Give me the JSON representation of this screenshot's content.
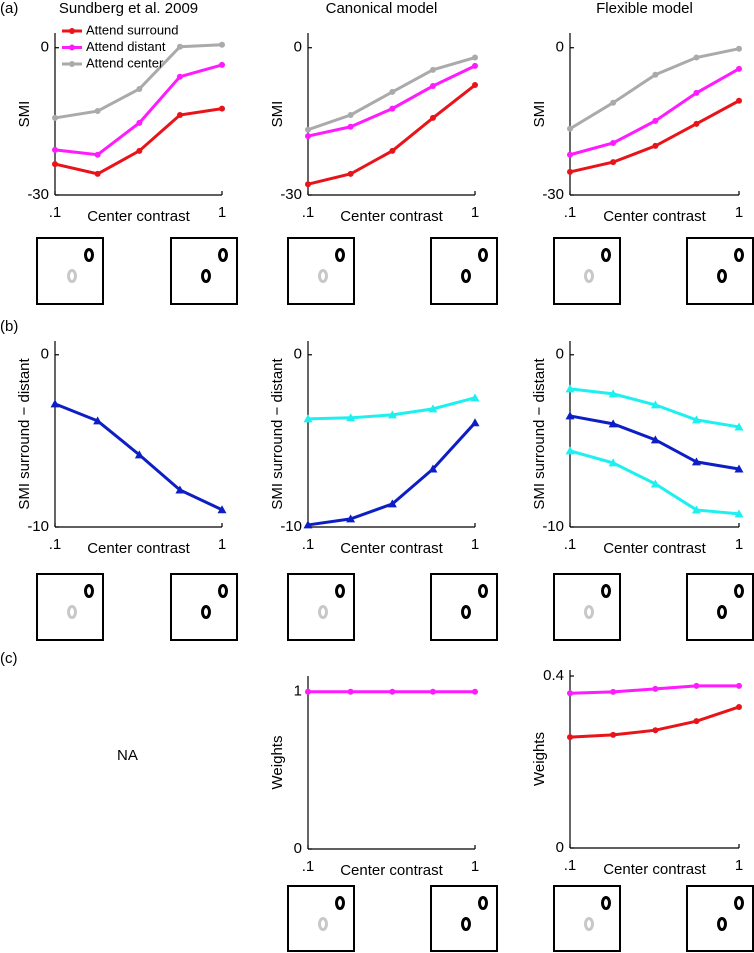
{
  "panel_labels": [
    "(a)",
    "(b)",
    "(c)"
  ],
  "na_label": "NA",
  "chart_data": [
    {
      "type": "line",
      "title": "Sundberg et al. 2009",
      "xlabel": "Center contrast",
      "ylabel": "SMI",
      "log_x": true,
      "marker": "circle",
      "legend": "upper left",
      "x": [
        0.1,
        0.18,
        0.32,
        0.56,
        1
      ],
      "xlim": [
        0.1,
        1
      ],
      "xticks": [
        {
          "value": 0.1,
          "label": ".1"
        },
        1
      ],
      "ylim": [
        -30,
        3
      ],
      "yticks": [
        -30,
        0
      ],
      "series": [
        {
          "name": "Attend surround",
          "color": "#e8141a",
          "values": [
            -23.7,
            -25.7,
            -21,
            -13.7,
            -12.4
          ]
        },
        {
          "name": "Attend distant",
          "color": "#ff1aff",
          "values": [
            -20.8,
            -21.8,
            -15.3,
            -5.9,
            -3.5
          ]
        },
        {
          "name": "Attend center",
          "color": "#aaaaaa",
          "values": [
            -14.3,
            -12.9,
            -8.4,
            0.2,
            0.6
          ]
        }
      ]
    },
    {
      "type": "line",
      "title": "Canonical model",
      "xlabel": "Center contrast",
      "ylabel": "SMI",
      "log_x": true,
      "marker": "circle",
      "x": [
        0.1,
        0.18,
        0.32,
        0.56,
        1
      ],
      "xlim": [
        0.1,
        1
      ],
      "xticks": [
        {
          "value": 0.1,
          "label": ".1"
        },
        1
      ],
      "ylim": [
        -30,
        3
      ],
      "yticks": [
        -30,
        0
      ],
      "series": [
        {
          "color": "#e8141a",
          "values": [
            -27.8,
            -25.7,
            -21,
            -14.3,
            -7.6
          ]
        },
        {
          "color": "#ff1aff",
          "values": [
            -18,
            -16.1,
            -12.4,
            -7.8,
            -3.7
          ]
        },
        {
          "color": "#aaaaaa",
          "values": [
            -16.7,
            -13.7,
            -9,
            -4.5,
            -2
          ]
        }
      ]
    },
    {
      "type": "line",
      "title": "Flexible model",
      "xlabel": "Center contrast",
      "ylabel": "SMI",
      "log_x": true,
      "marker": "circle",
      "x": [
        0.1,
        0.18,
        0.32,
        0.56,
        1
      ],
      "xlim": [
        0.1,
        1
      ],
      "xticks": [
        {
          "value": 0.1,
          "label": ".1"
        },
        1
      ],
      "ylim": [
        -30,
        3
      ],
      "yticks": [
        -30,
        0
      ],
      "series": [
        {
          "color": "#e8141a",
          "values": [
            -25.3,
            -23.3,
            -20,
            -15.5,
            -10.8
          ]
        },
        {
          "color": "#ff1aff",
          "values": [
            -21.8,
            -19.4,
            -14.9,
            -9.2,
            -4.3
          ]
        },
        {
          "color": "#aaaaaa",
          "values": [
            -16.5,
            -11.2,
            -5.5,
            -2,
            -0.2
          ]
        }
      ]
    },
    {
      "type": "line",
      "xlabel": "Center contrast",
      "ylabel": "SMI surround − distant",
      "log_x": true,
      "marker": "triangle",
      "x": [
        0.1,
        0.18,
        0.32,
        0.56,
        1
      ],
      "xlim": [
        0.1,
        1
      ],
      "xticks": [
        {
          "value": 0.1,
          "label": ".1"
        },
        1
      ],
      "ylim": [
        -10,
        0.8
      ],
      "yticks": [
        -10,
        0
      ],
      "series": [
        {
          "color": "#0d1fc4",
          "values": [
            -2.85,
            -3.84,
            -5.81,
            -7.85,
            -9.0
          ]
        }
      ]
    },
    {
      "type": "line",
      "xlabel": "Center contrast",
      "ylabel": "SMI surround − distant",
      "log_x": true,
      "marker": "triangle",
      "x": [
        0.1,
        0.18,
        0.32,
        0.56,
        1
      ],
      "xlim": [
        0.1,
        1
      ],
      "xticks": [
        {
          "value": 0.1,
          "label": ".1"
        },
        1
      ],
      "ylim": [
        -10,
        0.8
      ],
      "yticks": [
        -10,
        0
      ],
      "series": [
        {
          "color": "#1ef0f0",
          "values": [
            -3.72,
            -3.66,
            -3.49,
            -3.14,
            -2.5
          ]
        },
        {
          "color": "#0d1fc4",
          "values": [
            -9.88,
            -9.53,
            -8.66,
            -6.63,
            -3.95
          ]
        }
      ]
    },
    {
      "type": "line",
      "xlabel": "Center contrast",
      "ylabel": "SMI surround − distant",
      "log_x": true,
      "marker": "triangle",
      "x": [
        0.1,
        0.18,
        0.32,
        0.56,
        1
      ],
      "xlim": [
        0.1,
        1
      ],
      "xticks": [
        {
          "value": 0.1,
          "label": ".1"
        },
        1
      ],
      "ylim": [
        -10,
        0.8
      ],
      "yticks": [
        -10,
        0
      ],
      "series": [
        {
          "color": "#1ef0f0",
          "values": [
            -1.98,
            -2.27,
            -2.91,
            -3.78,
            -4.19
          ]
        },
        {
          "color": "#0d1fc4",
          "values": [
            -3.55,
            -4.01,
            -4.94,
            -6.22,
            -6.63
          ]
        },
        {
          "color": "#1ef0f0",
          "values": [
            -5.58,
            -6.28,
            -7.5,
            -9.01,
            -9.24
          ]
        }
      ]
    },
    {
      "type": "line",
      "xlabel": "Center contrast",
      "ylabel": "Weights",
      "log_x": true,
      "marker": "circle",
      "x": [
        0.1,
        0.18,
        0.32,
        0.56,
        1
      ],
      "xlim": [
        0.1,
        1
      ],
      "xticks": [
        {
          "value": 0.1,
          "label": ".1"
        },
        1
      ],
      "ylim": [
        0,
        1.1
      ],
      "yticks": [
        0,
        1
      ],
      "series": [
        {
          "color": "#ff1aff",
          "values": [
            1,
            1,
            1,
            1,
            1
          ]
        }
      ]
    },
    {
      "type": "line",
      "xlabel": "Center contrast",
      "ylabel": "Weights",
      "log_x": true,
      "marker": "circle",
      "x": [
        0.1,
        0.18,
        0.32,
        0.56,
        1
      ],
      "xlim": [
        0.1,
        1
      ],
      "xticks": [
        {
          "value": 0.1,
          "label": ".1"
        },
        1
      ],
      "ylim": [
        0,
        0.414
      ],
      "yticks": [
        0,
        0.4
      ],
      "series": [
        {
          "color": "#ff1aff",
          "values": [
            0.36,
            0.363,
            0.37,
            0.377,
            0.377
          ]
        },
        {
          "color": "#e8141a",
          "values": [
            0.258,
            0.263,
            0.274,
            0.295,
            0.328
          ]
        }
      ]
    }
  ]
}
